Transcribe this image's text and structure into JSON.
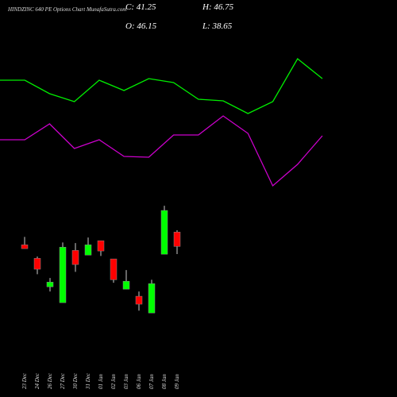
{
  "chart_data": [
    {
      "type": "candlestick",
      "title": "HINDZINC 640 PE Options Chart MunafaSutra.com",
      "ohlc_labels": [
        "C: 41.25",
        "H: 46.75",
        "O: 46.15",
        "L: 38.65"
      ],
      "categories": [
        "23 Dec",
        "24 Dec",
        "26 Dec",
        "27 Dec",
        "30 Dec",
        "31 Dec",
        "01 Jan",
        "02 Jan",
        "03 Jan",
        "06 Jan",
        "07 Jan",
        "08 Jan",
        "09 Jan"
      ],
      "open": [
        41.8,
        37.2,
        27.5,
        22.1,
        39.9,
        38.3,
        43.2,
        37.0,
        26.7,
        24.3,
        18.6,
        38.6,
        46.15
      ],
      "high": [
        44.5,
        37.8,
        30.5,
        42.6,
        42.4,
        44.3,
        43.2,
        37.0,
        33.2,
        25.9,
        29.9,
        55.1,
        46.75
      ],
      "low": [
        40.5,
        31.8,
        25.9,
        22.1,
        32.6,
        38.3,
        38.0,
        28.9,
        26.7,
        19.4,
        18.6,
        38.6,
        38.65
      ],
      "close": [
        40.5,
        33.5,
        29.1,
        41.0,
        35.1,
        41.8,
        39.7,
        29.9,
        29.4,
        21.6,
        28.6,
        53.5,
        41.25
      ],
      "up_color": "#00ff00",
      "down_color": "#ff0000",
      "ylim": [
        10,
        70
      ]
    },
    {
      "type": "line",
      "x": [
        0,
        1,
        2,
        3,
        4,
        5,
        6,
        7,
        8,
        9,
        10,
        11,
        12,
        13
      ],
      "xlim": [
        0,
        13
      ],
      "ylim": [
        0,
        100
      ],
      "series": [
        {
          "color": "#00ee00",
          "values": [
            59.6,
            59.6,
            52.8,
            48.8,
            59.6,
            54.4,
            60.4,
            58.4,
            50,
            49.2,
            42.8,
            48.8,
            70.4,
            60.4
          ]
        },
        {
          "color": "#cc00cc",
          "values": [
            29.6,
            29.6,
            37.6,
            25.2,
            29.6,
            21.2,
            20.8,
            32,
            32,
            41.6,
            32.8,
            6.4,
            17.2,
            31.6
          ]
        }
      ]
    }
  ]
}
